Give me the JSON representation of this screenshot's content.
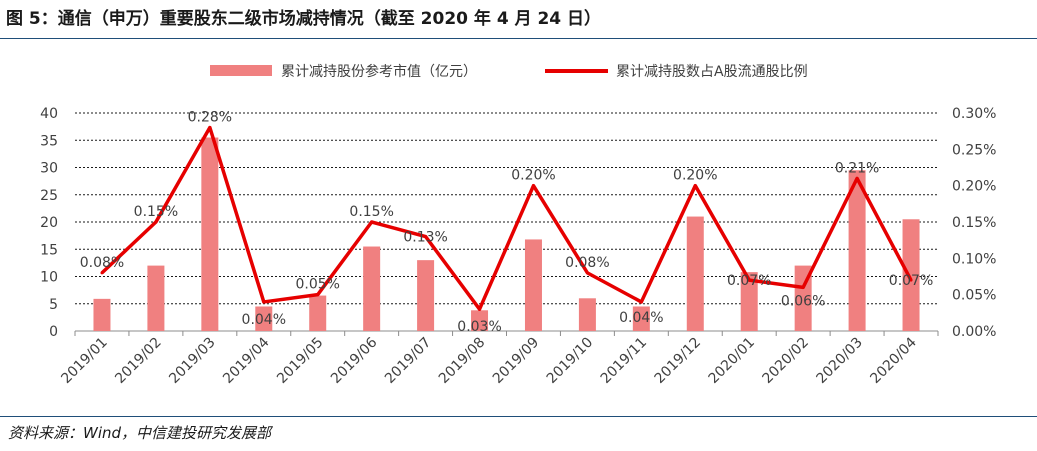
{
  "title": "图 5：通信（申万）重要股东二级市场减持情况（截至 2020 年 4 月 24 日）",
  "source": "资料来源：Wind，中信建投研究发展部",
  "chart_data": {
    "type": "bar+line",
    "categories": [
      "2019/01",
      "2019/02",
      "2019/03",
      "2019/04",
      "2019/05",
      "2019/06",
      "2019/07",
      "2019/08",
      "2019/09",
      "2019/10",
      "2019/11",
      "2019/12",
      "2020/01",
      "2020/02",
      "2020/03",
      "2020/04"
    ],
    "bar_series": {
      "name": "累计减持股份参考市值（亿元）",
      "color": "#f08080",
      "values": [
        5.9,
        12.0,
        35.5,
        4.5,
        6.5,
        15.5,
        13.0,
        3.8,
        16.8,
        6.0,
        4.5,
        21.0,
        10.8,
        12.0,
        29.5,
        20.5
      ]
    },
    "line_series": {
      "name": "累计减持股数占A股流通股比例",
      "color": "#e60000",
      "values": [
        0.0008,
        0.0015,
        0.0028,
        0.0004,
        0.0005,
        0.0015,
        0.0013,
        0.0003,
        0.002,
        0.0008,
        0.0004,
        0.002,
        0.0007,
        0.0006,
        0.0021,
        0.0007
      ],
      "labels": [
        "0.08%",
        "0.15%",
        "0.28%",
        "0.04%",
        "0.05%",
        "0.15%",
        "0.13%",
        "0.03%",
        "0.20%",
        "0.08%",
        "0.04%",
        "0.20%",
        "0.07%",
        "0.06%",
        "0.21%",
        "0.07%"
      ]
    },
    "y_left": {
      "min": 0,
      "max": 40,
      "ticks": [
        "0",
        "5",
        "10",
        "15",
        "20",
        "25",
        "30",
        "35",
        "40"
      ]
    },
    "y_right": {
      "min": 0,
      "max": 0.003,
      "ticks": [
        "0.00%",
        "0.05%",
        "0.10%",
        "0.15%",
        "0.20%",
        "0.25%",
        "0.30%"
      ]
    },
    "grid": true,
    "legend_position": "top"
  }
}
